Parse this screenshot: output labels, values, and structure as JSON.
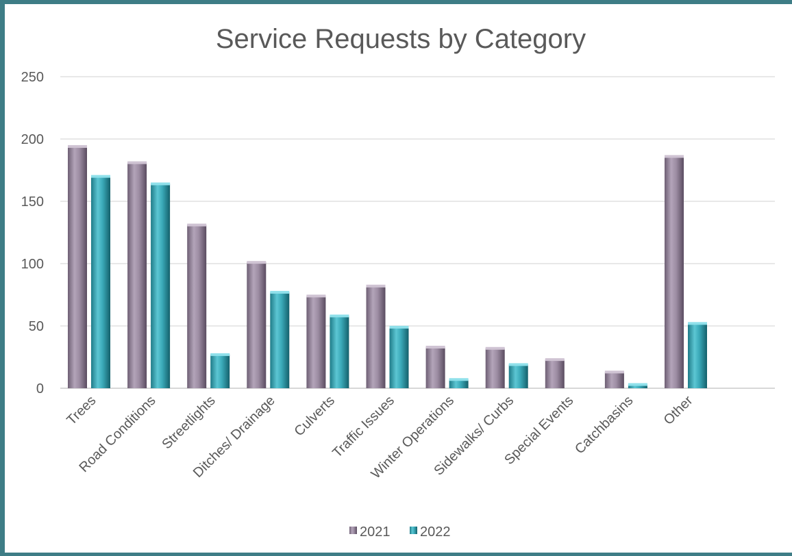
{
  "chart_data": {
    "type": "bar",
    "title": "Service Requests by Category",
    "xlabel": "",
    "ylabel": "",
    "ylim": [
      0,
      250
    ],
    "yticks": [
      0,
      50,
      100,
      150,
      200,
      250
    ],
    "grid": true,
    "legend_position": "bottom",
    "categories": [
      "Trees",
      "Road Conditions",
      "Streetlights",
      "Ditches/ Drainage",
      "Culverts",
      "Traffic Issues",
      "Winter Operations",
      "Sidewalks/ Curbs",
      "Special Events",
      "Catchbasins",
      "Other"
    ],
    "series": [
      {
        "name": "2021",
        "color": "#9a8aa0",
        "values": [
          194,
          181,
          131,
          101,
          74,
          82,
          33,
          32,
          23,
          13,
          186
        ]
      },
      {
        "name": "2022",
        "color": "#38a9b8",
        "values": [
          170,
          164,
          27,
          77,
          58,
          49,
          7,
          19,
          0,
          3,
          52
        ]
      }
    ]
  }
}
